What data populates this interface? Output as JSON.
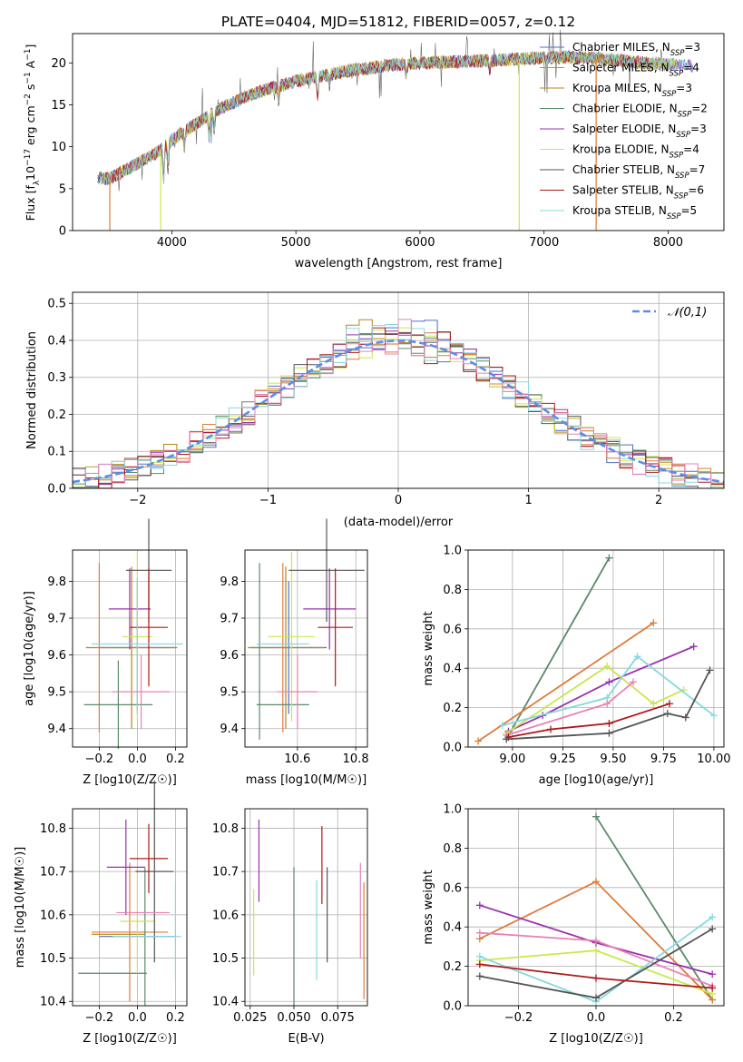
{
  "chart_data": [
    {
      "type": "line",
      "title": "PLATE=0404, MJD=51812, FIBERID=0057, z=0.12",
      "xlabel": "wavelength [Angstrom, rest frame]",
      "ylabel": "Flux [f_λ10^-17 erg cm^-2 s^-1 A^-1]",
      "xlim": [
        3200,
        8450
      ],
      "ylim": [
        0,
        23.5
      ],
      "xticks": [
        4000,
        5000,
        6000,
        7000,
        8000
      ],
      "yticks": [
        0,
        5,
        10,
        15,
        20
      ],
      "legend_position": "right",
      "series": [
        {
          "name": "Chabrier MILES, N_SSP=3",
          "color": "#4a6fc9"
        },
        {
          "name": "Salpeter MILES, N_SSP=4",
          "color": "#e07b39"
        },
        {
          "name": "Kroupa MILES, N_SSP=3",
          "color": "#b5861a"
        },
        {
          "name": "Chabrier ELODIE, N_SSP=2",
          "color": "#5a8a6a"
        },
        {
          "name": "Salpeter ELODIE, N_SSP=3",
          "color": "#9b30b0"
        },
        {
          "name": "Kroupa ELODIE, N_SSP=4",
          "color": "#c9e84a"
        },
        {
          "name": "Chabrier STELIB, N_SSP=7",
          "color": "#555555"
        },
        {
          "name": "Salpeter STELIB, N_SSP=6",
          "color": "#b01818"
        },
        {
          "name": "Kroupa STELIB, N_SSP=5",
          "color": "#86d8e0"
        }
      ],
      "continuum": {
        "x": [
          3400,
          3500,
          3700,
          3900,
          4000,
          4200,
          4400,
          4600,
          4800,
          5000,
          5200,
          5400,
          5600,
          5800,
          6000,
          6200,
          6400,
          6600,
          6800,
          7000,
          7200,
          7400,
          7600,
          7800,
          8000,
          8200
        ],
        "y": [
          6.3,
          6.2,
          7.8,
          9.5,
          10.8,
          12.8,
          14.6,
          16.0,
          17.0,
          17.8,
          18.4,
          19.0,
          19.4,
          19.8,
          20.0,
          20.1,
          20.2,
          20.3,
          20.5,
          20.6,
          20.7,
          20.6,
          20.3,
          20.0,
          19.8,
          19.6
        ]
      }
    },
    {
      "type": "line",
      "xlabel": "(data-model)/error",
      "ylabel": "Normed distribution",
      "xlim": [
        -2.5,
        2.5
      ],
      "ylim": [
        0,
        0.53
      ],
      "xticks": [
        -2,
        -1,
        0,
        1,
        2
      ],
      "yticks": [
        0.0,
        0.1,
        0.2,
        0.3,
        0.4,
        0.5
      ],
      "legend_position": "upper right",
      "reference": {
        "name": "𝒩(0,1)",
        "color": "#5b8ee6"
      }
    },
    {
      "type": "scatter",
      "xlabel": "Z [log10(Z/Z☉)]",
      "ylabel": "age [log10(age/yr)]",
      "xlim": [
        -0.34,
        0.26
      ],
      "ylim": [
        9.35,
        9.885
      ],
      "xticks": [
        -0.2,
        0.0,
        0.2
      ],
      "yticks": [
        9.4,
        9.5,
        9.6,
        9.7,
        9.8
      ],
      "points": [
        {
          "color": "#4a6fc9",
          "x": 0.0,
          "xerr": 0.2,
          "y": 9.62,
          "yerr": 0.18
        },
        {
          "color": "#e07b39",
          "x": -0.2,
          "xerr": 0.0,
          "y": 9.62,
          "yerr": 0.23
        },
        {
          "color": "#b5861a",
          "x": -0.03,
          "xerr": 0.24,
          "y": 9.62,
          "yerr": 0.22
        },
        {
          "color": "#5a8a6a",
          "x": -0.1,
          "xerr": 0.18,
          "y": 9.465,
          "yerr": 0.12
        },
        {
          "color": "#9b30b0",
          "x": -0.04,
          "xerr": 0.11,
          "y": 9.725,
          "yerr": 0.11
        },
        {
          "color": "#c9e84a",
          "x": 0.0,
          "xerr": 0.08,
          "y": 9.65,
          "yerr": 0.23
        },
        {
          "color": "#555555",
          "x": 0.06,
          "xerr": 0.12,
          "y": 9.83,
          "yerr": 0.14
        },
        {
          "color": "#b01818",
          "x": 0.06,
          "xerr": 0.1,
          "y": 9.675,
          "yerr": 0.16
        },
        {
          "color": "#86d8e0",
          "x": 0.0,
          "xerr": 0.24,
          "y": 9.63,
          "yerr": 0.18
        },
        {
          "color": "#e882b4",
          "x": 0.02,
          "xerr": 0.15,
          "y": 9.5,
          "yerr": 0.1
        }
      ]
    },
    {
      "type": "scatter",
      "xlabel": "mass [log10(M/M☉)]",
      "ylabel": "",
      "xlim": [
        10.42,
        10.84
      ],
      "ylim": [
        9.35,
        9.885
      ],
      "xticks": [
        10.4,
        10.6,
        10.8
      ],
      "yticks": [
        9.4,
        9.5,
        9.6,
        9.7,
        9.8
      ]
    },
    {
      "type": "line",
      "xlabel": "age [log10(age/yr)]",
      "ylabel": "mass weight",
      "xlim": [
        8.78,
        10.05
      ],
      "ylim": [
        0,
        1
      ],
      "xticks": [
        9.0,
        9.25,
        9.5,
        9.75,
        10.0
      ],
      "yticks": [
        0.0,
        0.2,
        0.4,
        0.6,
        0.8,
        1.0
      ],
      "series": [
        {
          "color": "#5a8a6a",
          "x": [
            8.97,
            9.48
          ],
          "y": [
            0.04,
            0.96
          ]
        },
        {
          "color": "#e07b39",
          "x": [
            8.83,
            9.7
          ],
          "y": [
            0.03,
            0.63
          ]
        },
        {
          "color": "#9b30b0",
          "x": [
            8.98,
            9.15,
            9.48,
            9.9
          ],
          "y": [
            0.08,
            0.16,
            0.33,
            0.51
          ]
        },
        {
          "color": "#c9e84a",
          "x": [
            8.97,
            9.47,
            9.7,
            9.85
          ],
          "y": [
            0.07,
            0.41,
            0.22,
            0.29
          ]
        },
        {
          "color": "#86d8e0",
          "x": [
            8.95,
            9.47,
            9.62,
            10.0
          ],
          "y": [
            0.11,
            0.25,
            0.46,
            0.16
          ]
        },
        {
          "color": "#e882b4",
          "x": [
            8.97,
            9.47,
            9.6
          ],
          "y": [
            0.06,
            0.22,
            0.33
          ]
        },
        {
          "color": "#b01818",
          "x": [
            8.98,
            9.19,
            9.48,
            9.78
          ],
          "y": [
            0.05,
            0.09,
            0.12,
            0.22
          ]
        },
        {
          "color": "#555555",
          "x": [
            8.97,
            9.48,
            9.77,
            9.86,
            9.98
          ],
          "y": [
            0.04,
            0.07,
            0.17,
            0.15,
            0.39
          ]
        }
      ]
    },
    {
      "type": "scatter",
      "xlabel": "Z [log10(Z/Z☉)]",
      "ylabel": "mass [log10(M/M☉)]",
      "xlim": [
        -0.34,
        0.26
      ],
      "ylim": [
        10.39,
        10.845
      ],
      "xticks": [
        -0.2,
        0.0,
        0.2
      ],
      "yticks": [
        10.4,
        10.5,
        10.6,
        10.7,
        10.8
      ]
    },
    {
      "type": "scatter",
      "xlabel": "E(B-V)",
      "ylabel": "",
      "xlim": [
        0.022,
        0.092
      ],
      "ylim": [
        10.39,
        10.845
      ],
      "xticks": [
        0.025,
        0.05,
        0.075
      ],
      "yticks": [
        10.4,
        10.5,
        10.6,
        10.7,
        10.8
      ]
    },
    {
      "type": "line",
      "xlabel": "Z [log10(Z/Z☉)]",
      "ylabel": "mass weight",
      "xlim": [
        -0.33,
        0.33
      ],
      "ylim": [
        0,
        1
      ],
      "xticks": [
        -0.2,
        0.0,
        0.2
      ],
      "yticks": [
        0.0,
        0.2,
        0.4,
        0.6,
        0.8,
        1.0
      ],
      "series": [
        {
          "color": "#5a8a6a",
          "x": [
            0.0,
            0.3
          ],
          "y": [
            0.96,
            0.03
          ]
        },
        {
          "color": "#e07b39",
          "x": [
            -0.3,
            0.0,
            0.3
          ],
          "y": [
            0.34,
            0.63,
            0.03
          ]
        },
        {
          "color": "#9b30b0",
          "x": [
            -0.3,
            0.0,
            0.3
          ],
          "y": [
            0.51,
            0.32,
            0.16
          ]
        },
        {
          "color": "#e882b4",
          "x": [
            -0.3,
            0.0,
            0.3
          ],
          "y": [
            0.37,
            0.33,
            0.1
          ]
        },
        {
          "color": "#c9e84a",
          "x": [
            -0.3,
            0.0,
            0.3
          ],
          "y": [
            0.23,
            0.28,
            0.06
          ]
        },
        {
          "color": "#86d8e0",
          "x": [
            -0.3,
            0.0,
            0.3
          ],
          "y": [
            0.25,
            0.02,
            0.45
          ]
        },
        {
          "color": "#555555",
          "x": [
            -0.3,
            0.0,
            0.3
          ],
          "y": [
            0.15,
            0.04,
            0.39
          ]
        },
        {
          "color": "#b01818",
          "x": [
            -0.3,
            0.0,
            0.3
          ],
          "y": [
            0.21,
            0.14,
            0.09
          ]
        }
      ]
    }
  ]
}
